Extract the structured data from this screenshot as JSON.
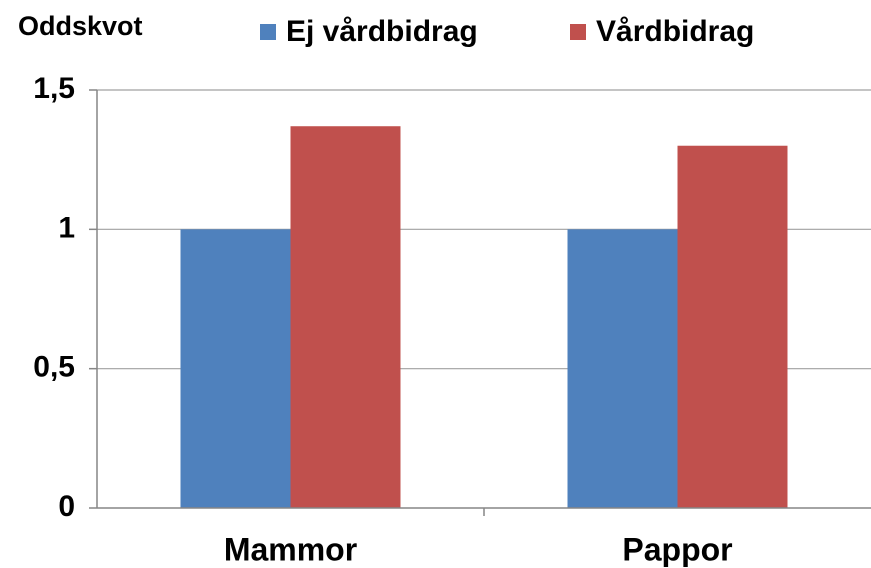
{
  "chart_data": {
    "type": "bar",
    "y_label": "Oddskvot",
    "categories": [
      "Mammor",
      "Pappor"
    ],
    "series": [
      {
        "name": "Ej vårdbidrag",
        "color": "#4f81bd",
        "values": [
          1,
          1
        ]
      },
      {
        "name": "Vårdbidrag",
        "color": "#c0504d",
        "values": [
          1.37,
          1.3
        ]
      }
    ],
    "ylim": [
      0,
      1.5
    ],
    "yticks": [
      0,
      {
        "value": 0.5,
        "label": "0,5"
      },
      1,
      {
        "value": 1.5,
        "label": "1,5"
      }
    ],
    "grid": true,
    "legend": "top"
  }
}
